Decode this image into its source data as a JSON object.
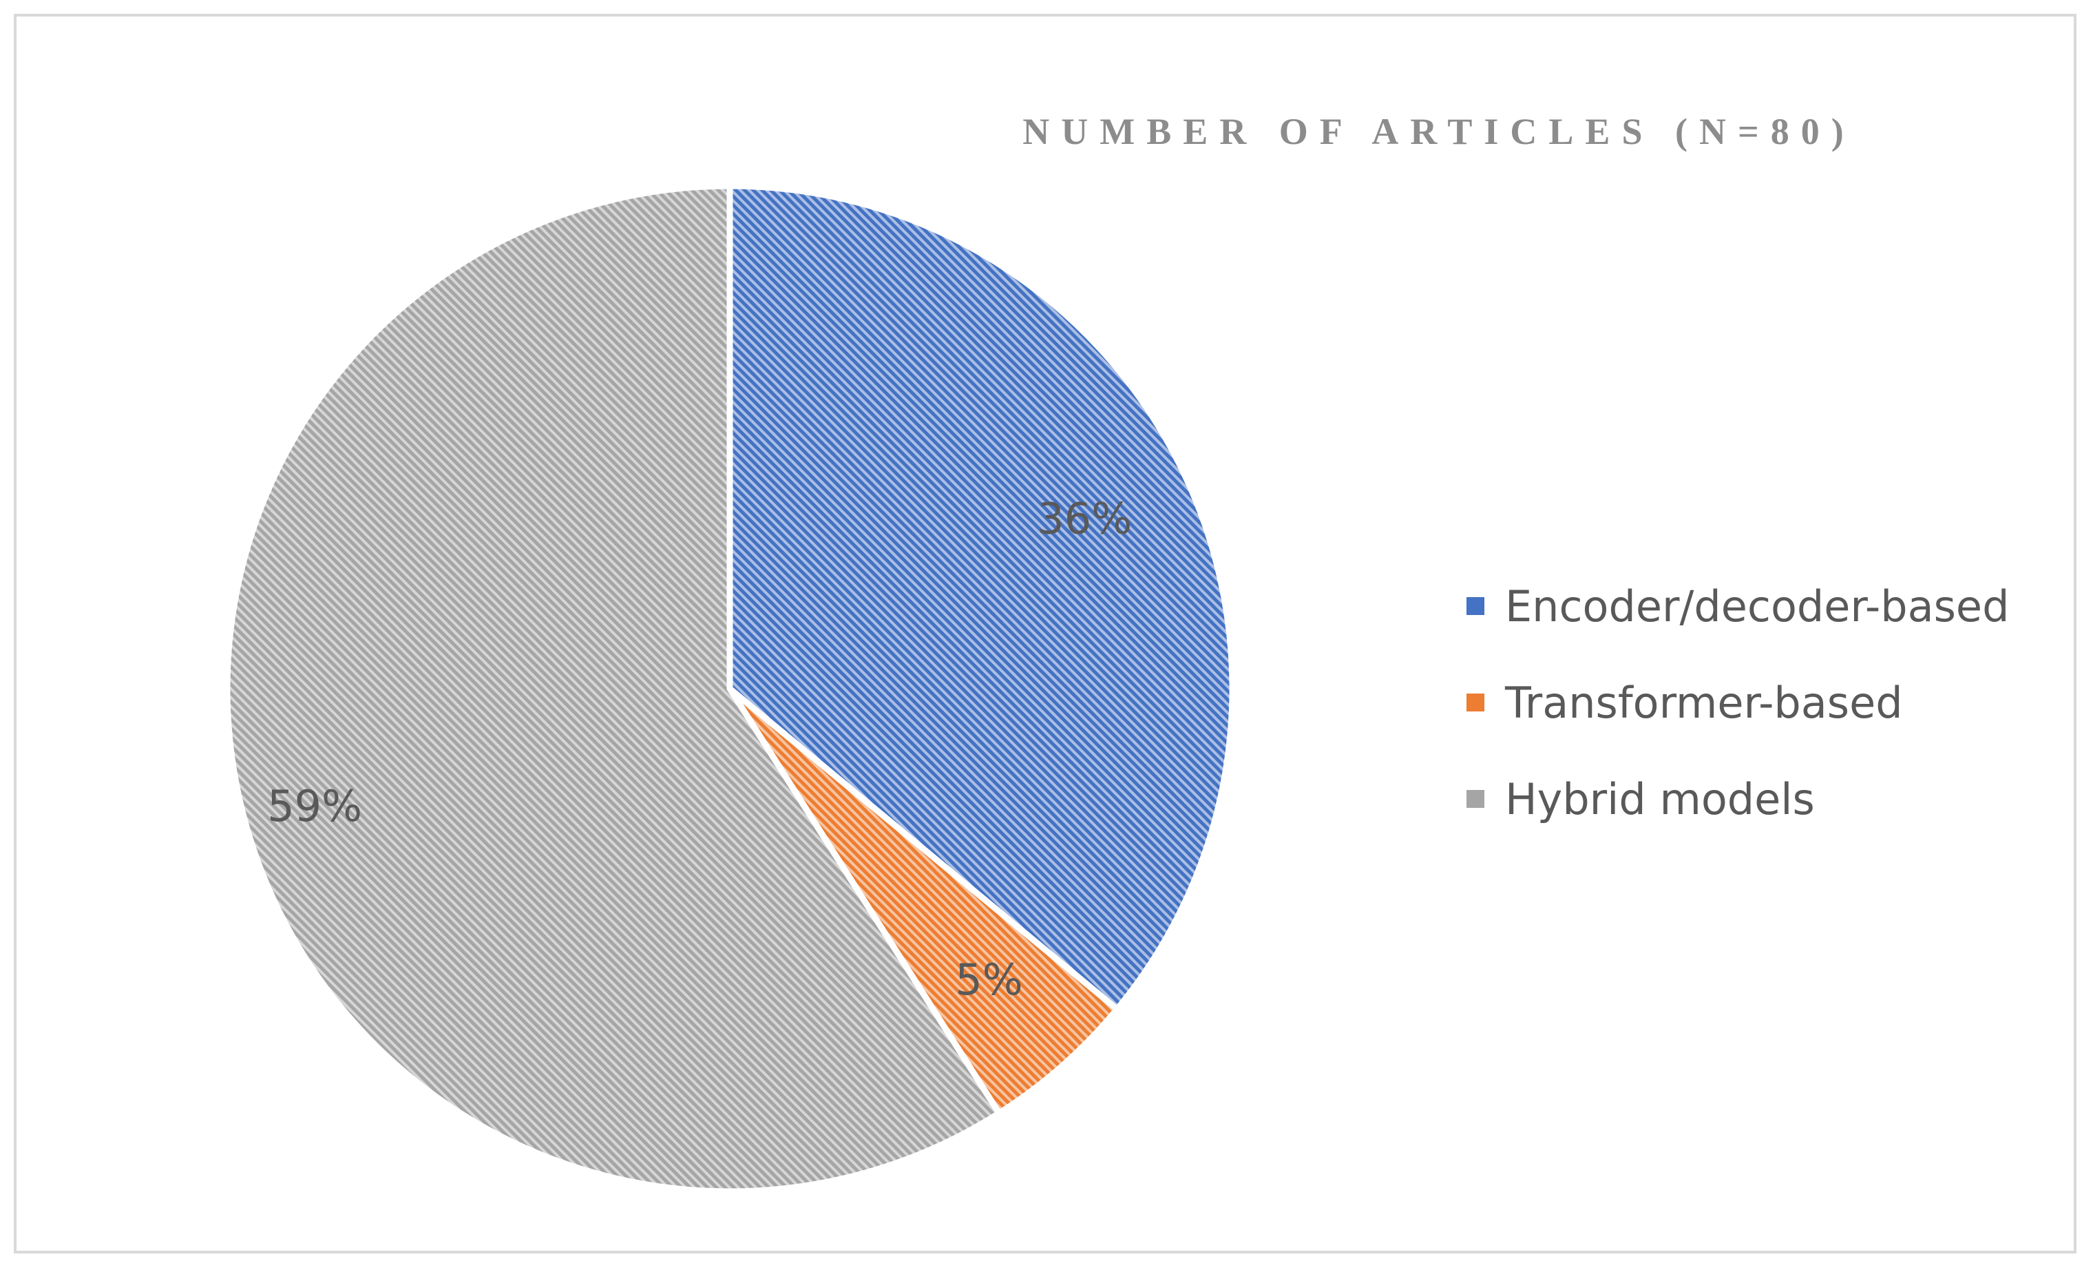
{
  "chart_data": {
    "type": "pie",
    "title": "NUMBER OF ARTICLES (N=80)",
    "categories": [
      "Encoder/decoder-based",
      "Transformer-based",
      "Hybrid models"
    ],
    "values": [
      36,
      5,
      59
    ],
    "data_labels": [
      "36%",
      "5%",
      "59%"
    ],
    "colors": [
      "#4472c4",
      "#ed7d31",
      "#a5a5a5"
    ],
    "fill_pattern": "diagonal-hatch",
    "start_angle_deg": 0,
    "direction": "clockwise",
    "legend_position": "right",
    "grid": false
  }
}
